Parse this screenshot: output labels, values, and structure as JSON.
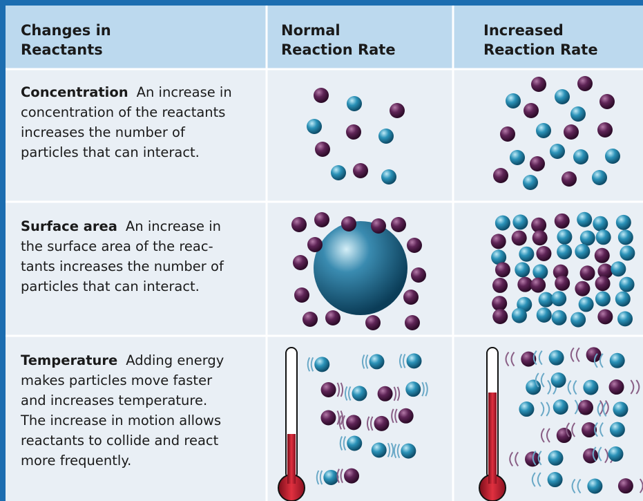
{
  "table": {
    "header": [
      "Changes in\nReactants",
      "Normal\nReaction Rate",
      "Increased\nReaction Rate"
    ],
    "rows": [
      {
        "term": "Concentration",
        "lines": [
          "An increase in",
          "concentration of the reactants",
          "increases the number of",
          "particles that can interact."
        ]
      },
      {
        "term": "Surface area",
        "lines": [
          "An increase in",
          "the surface area of the reac-",
          "tants increases the number of",
          "particles that can interact."
        ]
      },
      {
        "term": "Temperature",
        "lines": [
          "Adding energy",
          "makes particles move faster",
          "and increases temperature.",
          "The increase in motion allows",
          "reactants to collide and react",
          "more frequently."
        ]
      }
    ]
  }
}
